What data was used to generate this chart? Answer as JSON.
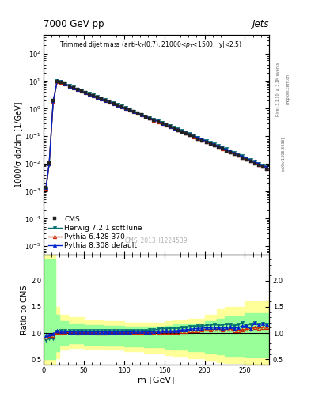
{
  "title_top": "7000 GeV pp",
  "title_right": "Jets",
  "ylabel_main": "1000/σ dσ/dm [1/GeV]",
  "ylabel_ratio": "Ratio to CMS",
  "xlabel": "m [GeV]",
  "watermark": "CMS_2013_I1224539",
  "rivet_label": "Rivet 3.1.10, ≥ 3.1M events",
  "arxiv_label": "[arXiv:1306.3436]",
  "mcplots_label": "mcplots.cern.ch",
  "cms_x": [
    3,
    7,
    12,
    17,
    22,
    27,
    32,
    37,
    42,
    47,
    52,
    57,
    62,
    67,
    72,
    77,
    82,
    87,
    92,
    97,
    102,
    107,
    112,
    117,
    122,
    127,
    132,
    137,
    142,
    147,
    152,
    157,
    162,
    167,
    172,
    177,
    182,
    187,
    192,
    197,
    202,
    207,
    212,
    217,
    222,
    227,
    232,
    237,
    242,
    247,
    252,
    257,
    262,
    267,
    272,
    277
  ],
  "cms_y": [
    0.0014,
    0.0105,
    2.0,
    9.8,
    9.2,
    7.8,
    6.6,
    5.7,
    4.95,
    4.3,
    3.8,
    3.35,
    2.95,
    2.6,
    2.28,
    2.0,
    1.75,
    1.53,
    1.33,
    1.16,
    1.01,
    0.88,
    0.77,
    0.67,
    0.585,
    0.51,
    0.445,
    0.385,
    0.335,
    0.29,
    0.252,
    0.219,
    0.19,
    0.165,
    0.143,
    0.124,
    0.107,
    0.093,
    0.08,
    0.07,
    0.06,
    0.052,
    0.045,
    0.039,
    0.034,
    0.029,
    0.025,
    0.022,
    0.019,
    0.016,
    0.014,
    0.012,
    0.01,
    0.0086,
    0.0074,
    0.0064
  ],
  "herwig_x": [
    3,
    7,
    12,
    17,
    22,
    27,
    32,
    37,
    42,
    47,
    52,
    57,
    62,
    67,
    72,
    77,
    82,
    87,
    92,
    97,
    102,
    107,
    112,
    117,
    122,
    127,
    132,
    137,
    142,
    147,
    152,
    157,
    162,
    167,
    172,
    177,
    182,
    187,
    192,
    197,
    202,
    207,
    212,
    217,
    222,
    227,
    232,
    237,
    242,
    247,
    252,
    257,
    262,
    267,
    272,
    277
  ],
  "herwig_y": [
    0.0012,
    0.0095,
    1.8,
    10.1,
    9.6,
    8.1,
    6.85,
    5.95,
    5.15,
    4.5,
    3.95,
    3.5,
    3.08,
    2.7,
    2.37,
    2.08,
    1.82,
    1.59,
    1.39,
    1.21,
    1.06,
    0.92,
    0.81,
    0.7,
    0.615,
    0.535,
    0.47,
    0.41,
    0.36,
    0.315,
    0.273,
    0.238,
    0.207,
    0.18,
    0.157,
    0.137,
    0.12,
    0.104,
    0.091,
    0.079,
    0.069,
    0.06,
    0.052,
    0.045,
    0.039,
    0.034,
    0.029,
    0.025,
    0.022,
    0.019,
    0.016,
    0.014,
    0.012,
    0.01,
    0.0087,
    0.0075
  ],
  "pythia6_x": [
    3,
    7,
    12,
    17,
    22,
    27,
    32,
    37,
    42,
    47,
    52,
    57,
    62,
    67,
    72,
    77,
    82,
    87,
    92,
    97,
    102,
    107,
    112,
    117,
    122,
    127,
    132,
    137,
    142,
    147,
    152,
    157,
    162,
    167,
    172,
    177,
    182,
    187,
    192,
    197,
    202,
    207,
    212,
    217,
    222,
    227,
    232,
    237,
    242,
    247,
    252,
    257,
    262,
    267,
    272,
    277
  ],
  "pythia6_y": [
    0.0013,
    0.01,
    1.9,
    10.0,
    9.3,
    7.9,
    6.65,
    5.75,
    4.97,
    4.33,
    3.82,
    3.37,
    2.97,
    2.61,
    2.29,
    2.01,
    1.76,
    1.54,
    1.34,
    1.17,
    1.02,
    0.89,
    0.78,
    0.68,
    0.59,
    0.515,
    0.448,
    0.39,
    0.34,
    0.296,
    0.257,
    0.223,
    0.194,
    0.169,
    0.147,
    0.128,
    0.112,
    0.097,
    0.084,
    0.074,
    0.064,
    0.055,
    0.048,
    0.042,
    0.036,
    0.031,
    0.027,
    0.023,
    0.02,
    0.017,
    0.015,
    0.013,
    0.011,
    0.0094,
    0.0082,
    0.0071
  ],
  "pythia8_x": [
    3,
    7,
    12,
    17,
    22,
    27,
    32,
    37,
    42,
    47,
    52,
    57,
    62,
    67,
    72,
    77,
    82,
    87,
    92,
    97,
    102,
    107,
    112,
    117,
    122,
    127,
    132,
    137,
    142,
    147,
    152,
    157,
    162,
    167,
    172,
    177,
    182,
    187,
    192,
    197,
    202,
    207,
    212,
    217,
    222,
    227,
    232,
    237,
    242,
    247,
    252,
    257,
    262,
    267,
    272,
    277
  ],
  "pythia8_y": [
    0.00135,
    0.0102,
    1.95,
    10.2,
    9.5,
    8.0,
    6.75,
    5.82,
    5.05,
    4.39,
    3.87,
    3.41,
    3.01,
    2.64,
    2.32,
    2.03,
    1.78,
    1.56,
    1.36,
    1.18,
    1.03,
    0.9,
    0.79,
    0.69,
    0.6,
    0.52,
    0.455,
    0.396,
    0.345,
    0.301,
    0.262,
    0.228,
    0.198,
    0.173,
    0.151,
    0.131,
    0.114,
    0.1,
    0.087,
    0.076,
    0.066,
    0.057,
    0.05,
    0.043,
    0.037,
    0.032,
    0.028,
    0.024,
    0.021,
    0.018,
    0.016,
    0.013,
    0.012,
    0.01,
    0.0087,
    0.0075
  ],
  "ratio_herwig_x": [
    3,
    7,
    12,
    17,
    22,
    27,
    32,
    37,
    42,
    47,
    52,
    57,
    62,
    67,
    72,
    77,
    82,
    87,
    92,
    97,
    102,
    107,
    112,
    117,
    122,
    127,
    132,
    137,
    142,
    147,
    152,
    157,
    162,
    167,
    172,
    177,
    182,
    187,
    192,
    197,
    202,
    207,
    212,
    217,
    222,
    227,
    232,
    237,
    242,
    247,
    252,
    257,
    262,
    267,
    272,
    277
  ],
  "ratio_herwig_y": [
    0.86,
    0.9,
    0.9,
    1.03,
    1.04,
    1.04,
    1.04,
    1.04,
    1.04,
    1.05,
    1.04,
    1.04,
    1.04,
    1.04,
    1.04,
    1.04,
    1.04,
    1.04,
    1.04,
    1.04,
    1.05,
    1.05,
    1.05,
    1.04,
    1.05,
    1.05,
    1.06,
    1.06,
    1.07,
    1.09,
    1.08,
    1.09,
    1.09,
    1.09,
    1.1,
    1.1,
    1.12,
    1.12,
    1.14,
    1.13,
    1.15,
    1.15,
    1.16,
    1.15,
    1.15,
    1.17,
    1.16,
    1.14,
    1.16,
    1.19,
    1.14,
    1.17,
    1.2,
    1.16,
    1.18,
    1.17
  ],
  "ratio_pythia6_x": [
    3,
    7,
    12,
    17,
    22,
    27,
    32,
    37,
    42,
    47,
    52,
    57,
    62,
    67,
    72,
    77,
    82,
    87,
    92,
    97,
    102,
    107,
    112,
    117,
    122,
    127,
    132,
    137,
    142,
    147,
    152,
    157,
    162,
    167,
    172,
    177,
    182,
    187,
    192,
    197,
    202,
    207,
    212,
    217,
    222,
    227,
    232,
    237,
    242,
    247,
    252,
    257,
    262,
    267,
    272,
    277
  ],
  "ratio_pythia6_y": [
    0.93,
    0.95,
    0.95,
    1.02,
    1.01,
    1.01,
    1.01,
    1.01,
    1.0,
    1.01,
    1.01,
    1.01,
    1.01,
    1.0,
    1.0,
    1.0,
    1.01,
    1.01,
    1.01,
    1.01,
    1.01,
    1.01,
    1.01,
    1.01,
    1.01,
    1.01,
    1.01,
    1.01,
    1.01,
    1.02,
    1.02,
    1.02,
    1.02,
    1.02,
    1.03,
    1.03,
    1.05,
    1.04,
    1.05,
    1.06,
    1.07,
    1.06,
    1.07,
    1.08,
    1.06,
    1.07,
    1.08,
    1.05,
    1.05,
    1.06,
    1.07,
    1.08,
    1.1,
    1.09,
    1.11,
    1.11
  ],
  "ratio_pythia8_x": [
    3,
    7,
    12,
    17,
    22,
    27,
    32,
    37,
    42,
    47,
    52,
    57,
    62,
    67,
    72,
    77,
    82,
    87,
    92,
    97,
    102,
    107,
    112,
    117,
    122,
    127,
    132,
    137,
    142,
    147,
    152,
    157,
    162,
    167,
    172,
    177,
    182,
    187,
    192,
    197,
    202,
    207,
    212,
    217,
    222,
    227,
    232,
    237,
    242,
    247,
    252,
    257,
    262,
    267,
    272,
    277
  ],
  "ratio_pythia8_y": [
    0.96,
    0.97,
    0.98,
    1.04,
    1.03,
    1.03,
    1.02,
    1.02,
    1.02,
    1.02,
    1.02,
    1.02,
    1.02,
    1.02,
    1.02,
    1.02,
    1.02,
    1.02,
    1.02,
    1.02,
    1.02,
    1.02,
    1.03,
    1.03,
    1.03,
    1.02,
    1.02,
    1.03,
    1.03,
    1.04,
    1.04,
    1.04,
    1.04,
    1.05,
    1.06,
    1.06,
    1.07,
    1.08,
    1.09,
    1.09,
    1.1,
    1.1,
    1.11,
    1.1,
    1.09,
    1.1,
    1.12,
    1.09,
    1.11,
    1.13,
    1.14,
    1.08,
    1.2,
    1.16,
    1.18,
    1.17
  ],
  "cms_color": "#222222",
  "herwig_color": "#007070",
  "pythia6_color": "#cc2200",
  "pythia8_color": "#0022cc",
  "yellow_band_x": [
    0,
    10,
    15,
    20,
    30,
    50,
    75,
    100,
    125,
    150,
    160,
    180,
    200,
    215,
    225,
    250,
    280
  ],
  "yellow_band_low": [
    0.38,
    0.38,
    0.52,
    0.68,
    0.72,
    0.7,
    0.68,
    0.65,
    0.62,
    0.58,
    0.56,
    0.52,
    0.48,
    0.44,
    0.42,
    0.4,
    0.38
  ],
  "yellow_band_high": [
    2.5,
    2.5,
    1.5,
    1.35,
    1.3,
    1.25,
    1.22,
    1.2,
    1.2,
    1.22,
    1.24,
    1.28,
    1.35,
    1.45,
    1.5,
    1.6,
    1.7
  ],
  "green_band_x": [
    0,
    10,
    15,
    20,
    30,
    50,
    75,
    100,
    125,
    150,
    160,
    180,
    200,
    215,
    225,
    250,
    280
  ],
  "green_band_low": [
    0.5,
    0.5,
    0.65,
    0.78,
    0.8,
    0.78,
    0.76,
    0.74,
    0.73,
    0.7,
    0.68,
    0.65,
    0.62,
    0.59,
    0.57,
    0.55,
    0.53
  ],
  "green_band_high": [
    2.4,
    2.4,
    1.35,
    1.22,
    1.18,
    1.15,
    1.13,
    1.12,
    1.12,
    1.14,
    1.16,
    1.18,
    1.22,
    1.28,
    1.32,
    1.38,
    1.45
  ],
  "xlim": [
    0,
    280
  ],
  "ylim_main": [
    5e-06,
    500
  ],
  "ylim_ratio": [
    0.4,
    2.5
  ]
}
